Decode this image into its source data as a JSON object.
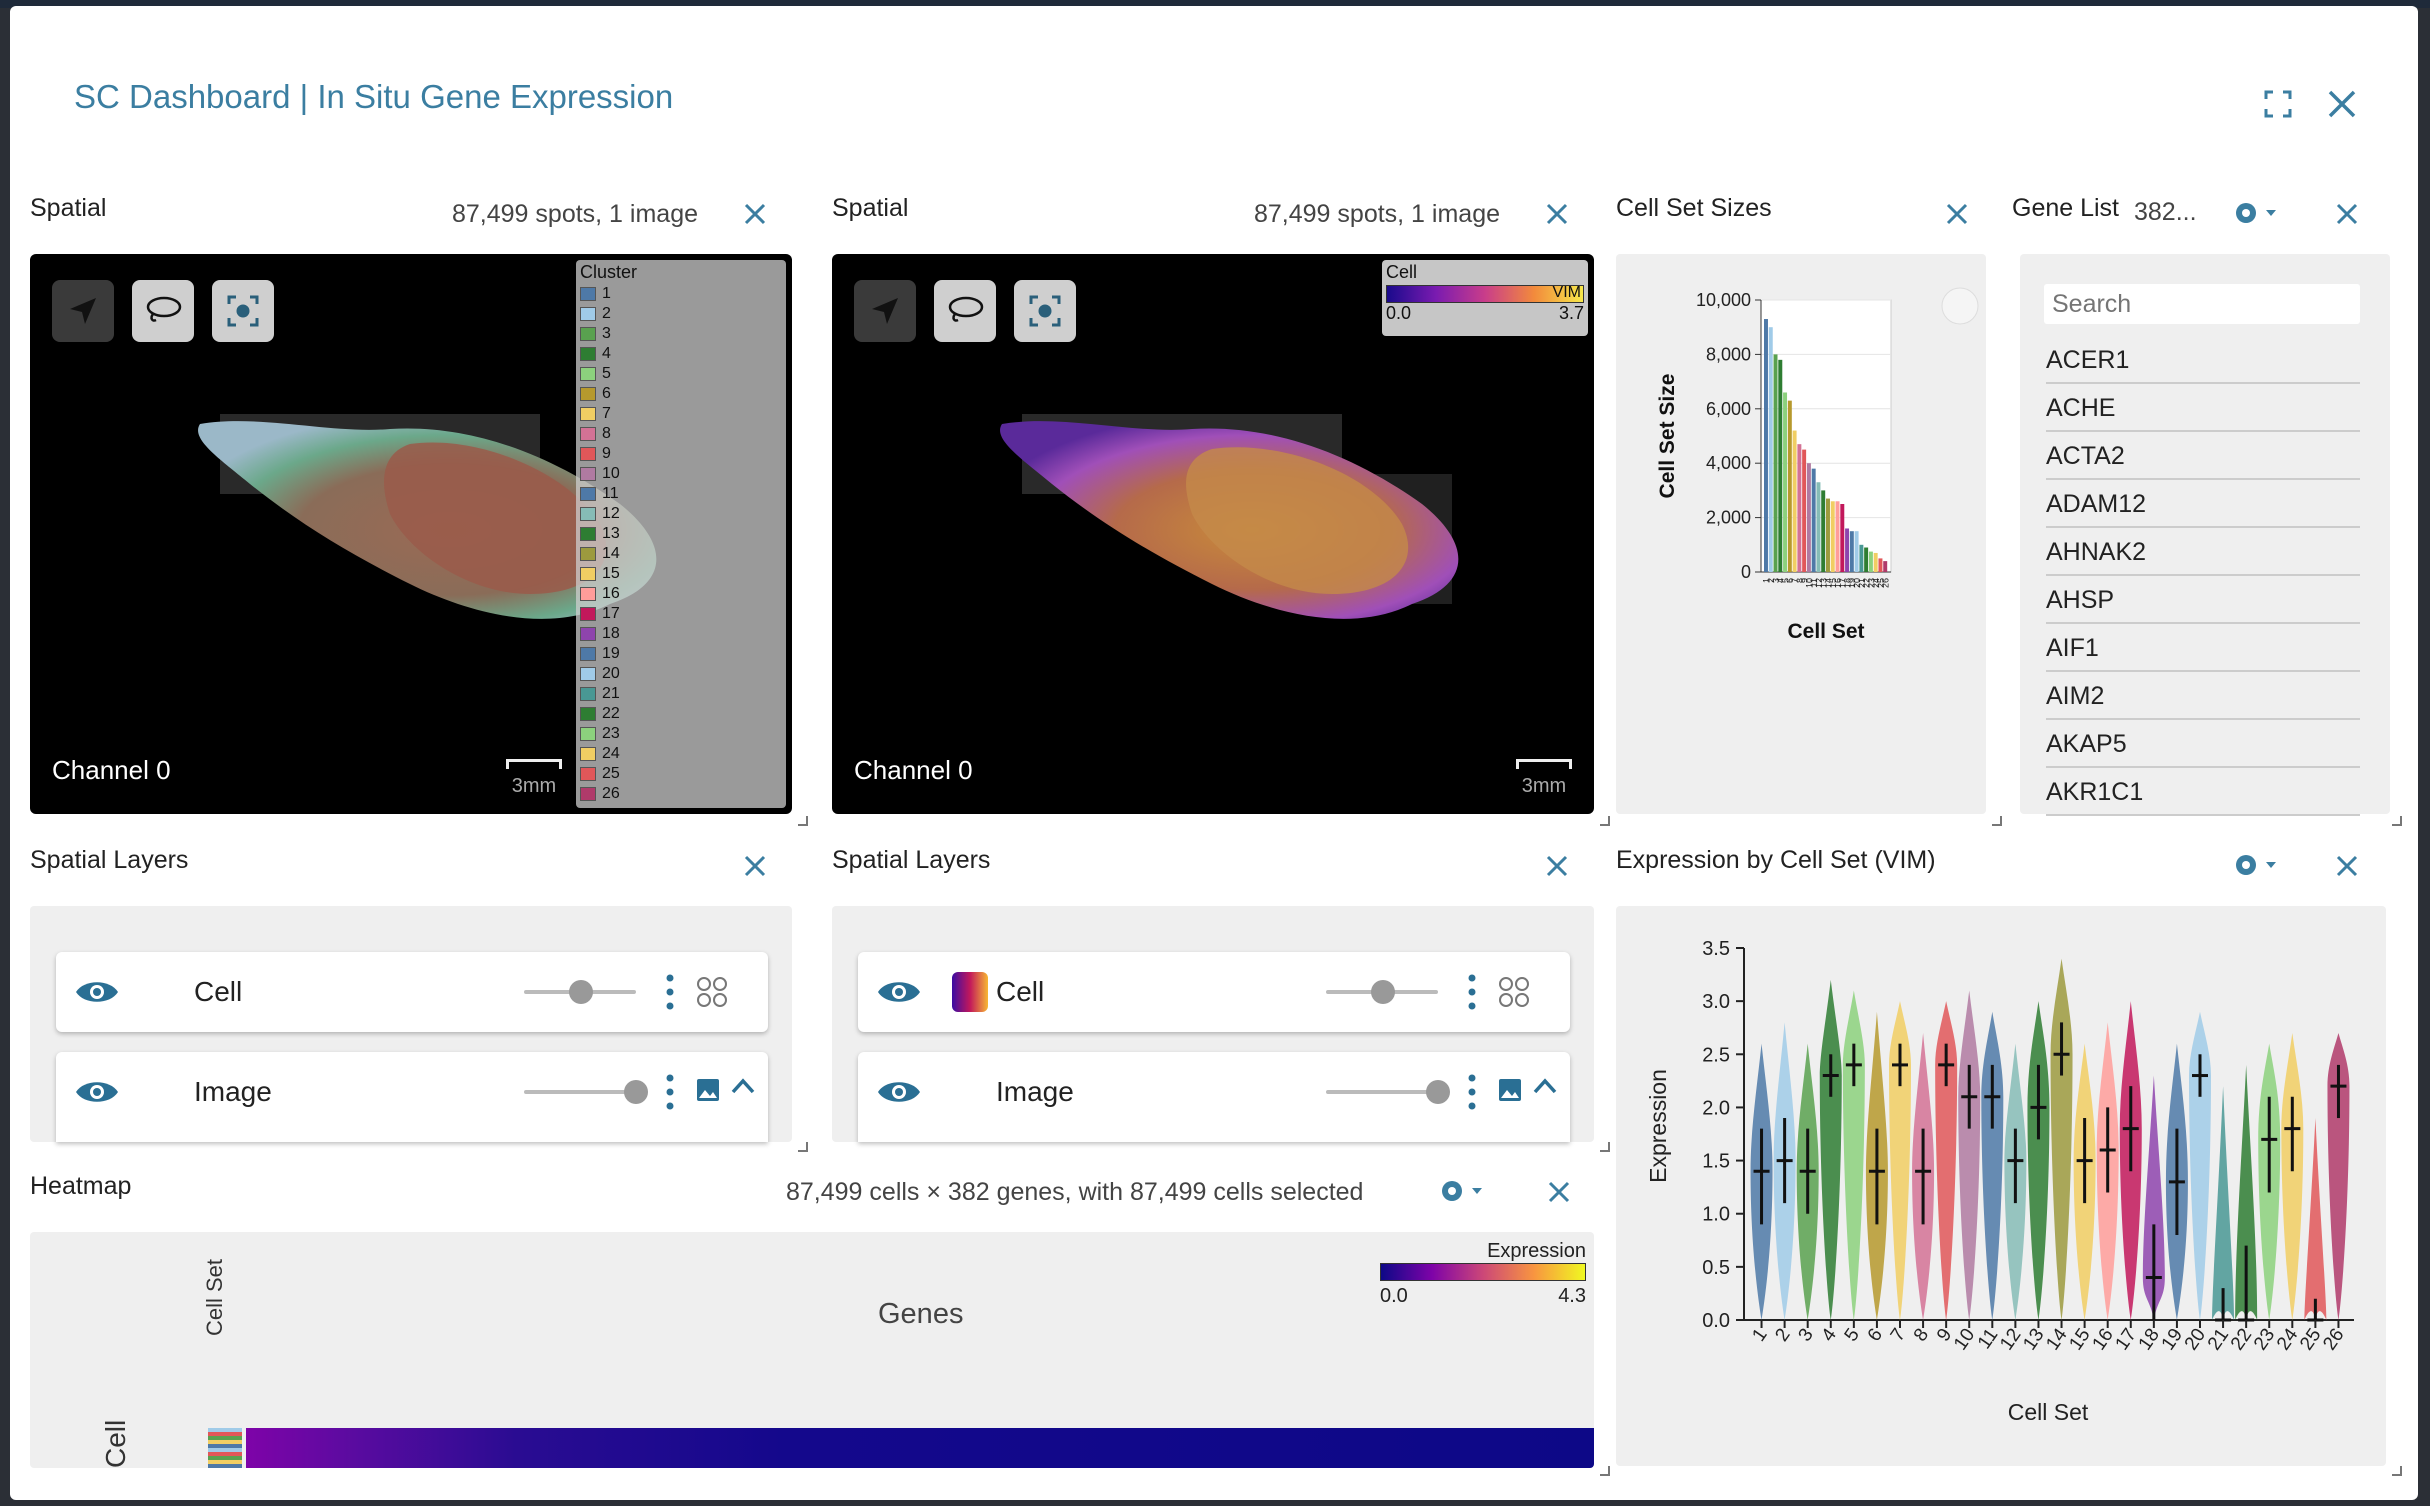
{
  "modal": {
    "title": "SC Dashboard | In Situ Gene Expression"
  },
  "spatial_left": {
    "title": "Spatial",
    "info": "87,499 spots, 1 image",
    "channel": "Channel 0",
    "scale": "3mm",
    "legend_title": "Cluster",
    "clusters": [
      "1",
      "2",
      "3",
      "4",
      "5",
      "6",
      "7",
      "8",
      "9",
      "10",
      "11",
      "12",
      "13",
      "14",
      "15",
      "16",
      "17",
      "18",
      "19",
      "20",
      "21",
      "22",
      "23",
      "24",
      "25",
      "26"
    ],
    "cluster_colors": [
      "#4e79a7",
      "#a0cbe8",
      "#59a14f",
      "#2e7d32",
      "#8cd17d",
      "#b6992d",
      "#f1ce63",
      "#d37295",
      "#e15759",
      "#b07aa1",
      "#4e79a7",
      "#86bcb6",
      "#2e7d32",
      "#9c9a3e",
      "#f1ce63",
      "#ff9d9a",
      "#c2185b",
      "#8e44ad",
      "#4e79a7",
      "#a0cbe8",
      "#499894",
      "#2e7d32",
      "#8cd17d",
      "#f1ce63",
      "#e15759",
      "#b03a6a"
    ]
  },
  "spatial_right": {
    "title": "Spatial",
    "info": "87,499 spots, 1 image",
    "channel": "Channel 0",
    "scale": "3mm",
    "cbar_title": "Cell",
    "cbar_gene": "VIM",
    "cbar_min": "0.0",
    "cbar_max": "3.7"
  },
  "cell_set_sizes": {
    "title": "Cell Set Sizes"
  },
  "gene_list": {
    "title": "Gene List",
    "count": "382...",
    "search_placeholder": "Search",
    "genes": [
      "ACER1",
      "ACHE",
      "ACTA2",
      "ADAM12",
      "AHNAK2",
      "AHSP",
      "AIF1",
      "AIM2",
      "AKAP5",
      "AKR1C1"
    ]
  },
  "layers_left": {
    "title": "Spatial Layers",
    "layers": [
      "Cell",
      "Image"
    ]
  },
  "layers_right": {
    "title": "Spatial Layers",
    "layers": [
      "Cell",
      "Image"
    ]
  },
  "expression": {
    "title": "Expression by Cell Set (VIM)"
  },
  "heatmap": {
    "title": "Heatmap",
    "info": "87,499 cells × 382 genes, with 87,499 cells selected",
    "legend_title": "Expression",
    "legend_min": "0.0",
    "legend_max": "4.3",
    "genes_label": "Genes",
    "cell_set_label": "Cell Set",
    "cell_label": "Cell"
  },
  "colors": {
    "accent": "#3b7ea1"
  },
  "chart_data": [
    {
      "type": "bar",
      "title": "Cell Set Sizes",
      "xlabel": "Cell Set",
      "ylabel": "Cell Set Size",
      "ylim": [
        0,
        10000
      ],
      "yticks": [
        "0",
        "2,000",
        "4,000",
        "6,000",
        "8,000",
        "10,000"
      ],
      "categories": [
        "1",
        "2",
        "3",
        "4",
        "5",
        "6",
        "7",
        "8",
        "9",
        "10",
        "11",
        "12",
        "13",
        "14",
        "15",
        "16",
        "17",
        "18",
        "19",
        "20",
        "21",
        "22",
        "23",
        "24",
        "25",
        "26"
      ],
      "values": [
        9300,
        9000,
        8000,
        7800,
        6600,
        6300,
        5200,
        4700,
        4500,
        4000,
        3800,
        3300,
        3000,
        2700,
        2600,
        2600,
        2500,
        1600,
        1500,
        1500,
        1000,
        900,
        750,
        700,
        500,
        400
      ],
      "colors": [
        "#4e79a7",
        "#a0cbe8",
        "#59a14f",
        "#2e7d32",
        "#8cd17d",
        "#b6992d",
        "#f1ce63",
        "#d37295",
        "#e15759",
        "#b07aa1",
        "#4e79a7",
        "#86bcb6",
        "#2e7d32",
        "#9c9a3e",
        "#f1ce63",
        "#ff9d9a",
        "#c2185b",
        "#8e44ad",
        "#4e79a7",
        "#a0cbe8",
        "#499894",
        "#2e7d32",
        "#8cd17d",
        "#f1ce63",
        "#e15759",
        "#b03a6a"
      ]
    },
    {
      "type": "violin",
      "title": "Expression by Cell Set (VIM)",
      "xlabel": "Cell Set",
      "ylabel": "Expression",
      "ylim": [
        0,
        3.5
      ],
      "yticks": [
        "0.0",
        "0.5",
        "1.0",
        "1.5",
        "2.0",
        "2.5",
        "3.0",
        "3.5"
      ],
      "categories": [
        "1",
        "2",
        "3",
        "4",
        "5",
        "6",
        "7",
        "8",
        "9",
        "10",
        "11",
        "12",
        "13",
        "14",
        "15",
        "16",
        "17",
        "18",
        "19",
        "20",
        "21",
        "22",
        "23",
        "24",
        "25",
        "26"
      ],
      "medians": [
        1.4,
        1.5,
        1.4,
        2.3,
        2.4,
        1.4,
        2.4,
        1.4,
        2.4,
        2.1,
        2.1,
        1.5,
        2.0,
        2.5,
        1.5,
        1.6,
        1.8,
        0.4,
        1.3,
        2.3,
        0.0,
        0.0,
        1.7,
        1.8,
        0.0,
        2.2
      ],
      "q1": [
        0.9,
        1.1,
        1.0,
        2.1,
        2.2,
        0.9,
        2.2,
        0.9,
        2.2,
        1.8,
        1.8,
        1.1,
        1.7,
        2.3,
        1.1,
        1.2,
        1.4,
        0.0,
        0.8,
        2.1,
        0.0,
        0.0,
        1.2,
        1.4,
        0.0,
        1.9
      ],
      "q3": [
        1.8,
        1.9,
        1.8,
        2.5,
        2.6,
        1.8,
        2.6,
        1.8,
        2.6,
        2.4,
        2.4,
        1.8,
        2.4,
        2.8,
        1.9,
        2.0,
        2.2,
        0.9,
        1.8,
        2.5,
        0.3,
        0.7,
        2.1,
        2.1,
        0.2,
        2.4
      ],
      "ymax": [
        2.6,
        2.8,
        2.6,
        3.2,
        3.1,
        2.9,
        3.0,
        2.7,
        3.0,
        3.1,
        2.9,
        2.6,
        3.0,
        3.4,
        2.6,
        2.8,
        3.0,
        2.3,
        2.6,
        2.9,
        2.2,
        2.4,
        2.6,
        2.7,
        1.9,
        2.7
      ],
      "colors": [
        "#4e79a7",
        "#a0cbe8",
        "#59a14f",
        "#2e7d32",
        "#8cd17d",
        "#b6992d",
        "#f1ce63",
        "#d37295",
        "#e15759",
        "#b07aa1",
        "#4e79a7",
        "#86bcb6",
        "#2e7d32",
        "#9c9a3e",
        "#f1ce63",
        "#ff9d9a",
        "#c2185b",
        "#8e44ad",
        "#4e79a7",
        "#a0cbe8",
        "#499894",
        "#2e7d32",
        "#8cd17d",
        "#f1ce63",
        "#e15759",
        "#b03a6a"
      ]
    }
  ]
}
